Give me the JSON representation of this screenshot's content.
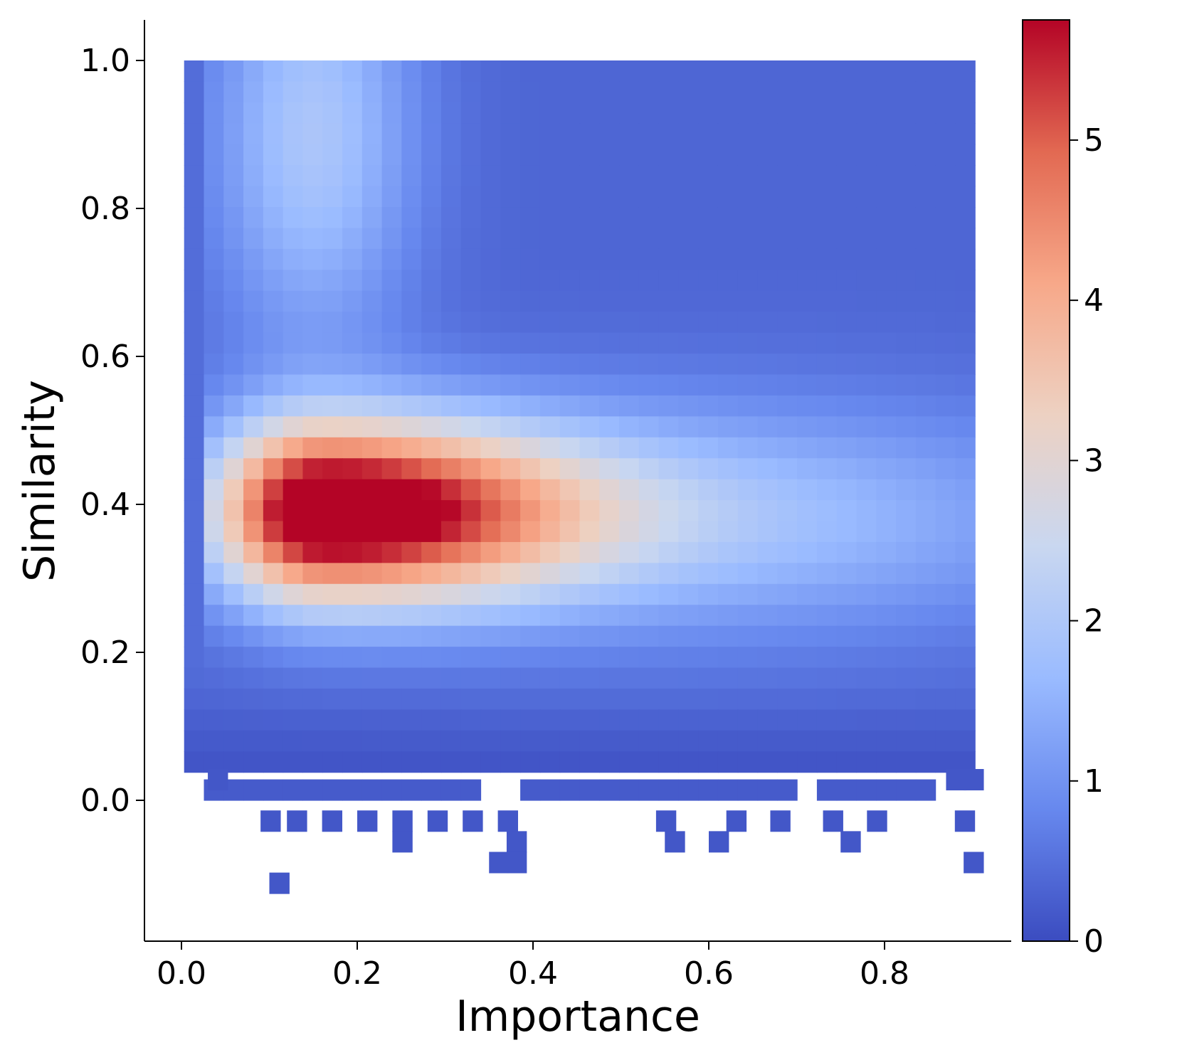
{
  "chart_data": {
    "type": "heatmap",
    "title": "",
    "xlabel": "Importance",
    "ylabel": "Similarity",
    "xlim": [
      -0.04,
      0.95
    ],
    "ylim": [
      -0.19,
      1.06
    ],
    "x_ticks": [
      "0.0",
      "0.2",
      "0.4",
      "0.6",
      "0.8"
    ],
    "x_tick_values": [
      0.0,
      0.2,
      0.4,
      0.6,
      0.8
    ],
    "y_ticks": [
      "0.0",
      "0.2",
      "0.4",
      "0.6",
      "0.8",
      "1.0"
    ],
    "y_tick_values": [
      0.0,
      0.2,
      0.4,
      0.6,
      0.8,
      1.0
    ],
    "colorbar": {
      "min": 0,
      "max": 5.75,
      "ticks": [
        "0",
        "1",
        "2",
        "3",
        "4",
        "5"
      ],
      "tick_values": [
        0,
        1,
        2,
        3,
        4,
        5
      ],
      "colormap": "coolwarm"
    },
    "colormap_stops": [
      "#3b4cc0",
      "#6788ee",
      "#9abbff",
      "#c9d7f0",
      "#edd1c2",
      "#f7a889",
      "#e26952",
      "#b40426"
    ],
    "grid": false,
    "bin_width_x": 0.0225,
    "bin_width_y": 0.0283,
    "x_bin_start": 0.003,
    "y_bin_top": 1.0,
    "x_bins": 40,
    "y_bins": 40,
    "density_model": {
      "background": 0.35,
      "peak": {
        "x": 0.16,
        "y": 0.39,
        "amplitude": 6.0,
        "sx_left": 0.085,
        "sx_right": 0.2,
        "sy": 0.085
      },
      "secondary": {
        "x": 0.62,
        "y": 0.38,
        "amplitude": 1.35,
        "sx": 0.3,
        "sy": 0.11
      },
      "upper_band": {
        "x": 0.15,
        "y": 0.9,
        "amplitude": 1.6,
        "sx": 0.08,
        "sy": 0.2
      },
      "left_edge_value": 0.25
    },
    "missing_cells": [
      {
        "x": 0.35,
        "y": 0.0
      },
      {
        "x": 0.705,
        "y": 0.0
      },
      {
        "x": 0.87,
        "y": 0.0
      },
      {
        "x": 0.75,
        "y": -0.028
      }
    ],
    "extra_cells": [
      {
        "x": 0.03,
        "y": 0.014
      },
      {
        "x": 0.87,
        "y": 0.014
      },
      {
        "x": 0.89,
        "y": 0.014
      },
      {
        "x": 0.09,
        "y": -0.042
      },
      {
        "x": 0.12,
        "y": -0.042
      },
      {
        "x": 0.16,
        "y": -0.042
      },
      {
        "x": 0.2,
        "y": -0.042
      },
      {
        "x": 0.24,
        "y": -0.042
      },
      {
        "x": 0.28,
        "y": -0.042
      },
      {
        "x": 0.32,
        "y": -0.042
      },
      {
        "x": 0.36,
        "y": -0.042
      },
      {
        "x": 0.54,
        "y": -0.042
      },
      {
        "x": 0.62,
        "y": -0.042
      },
      {
        "x": 0.67,
        "y": -0.042
      },
      {
        "x": 0.73,
        "y": -0.042
      },
      {
        "x": 0.78,
        "y": -0.042
      },
      {
        "x": 0.88,
        "y": -0.042
      },
      {
        "x": 0.24,
        "y": -0.07
      },
      {
        "x": 0.37,
        "y": -0.07
      },
      {
        "x": 0.55,
        "y": -0.07
      },
      {
        "x": 0.6,
        "y": -0.07
      },
      {
        "x": 0.75,
        "y": -0.07
      },
      {
        "x": 0.35,
        "y": -0.098
      },
      {
        "x": 0.37,
        "y": -0.098
      },
      {
        "x": 0.89,
        "y": -0.098
      },
      {
        "x": 0.1,
        "y": -0.126
      }
    ]
  }
}
